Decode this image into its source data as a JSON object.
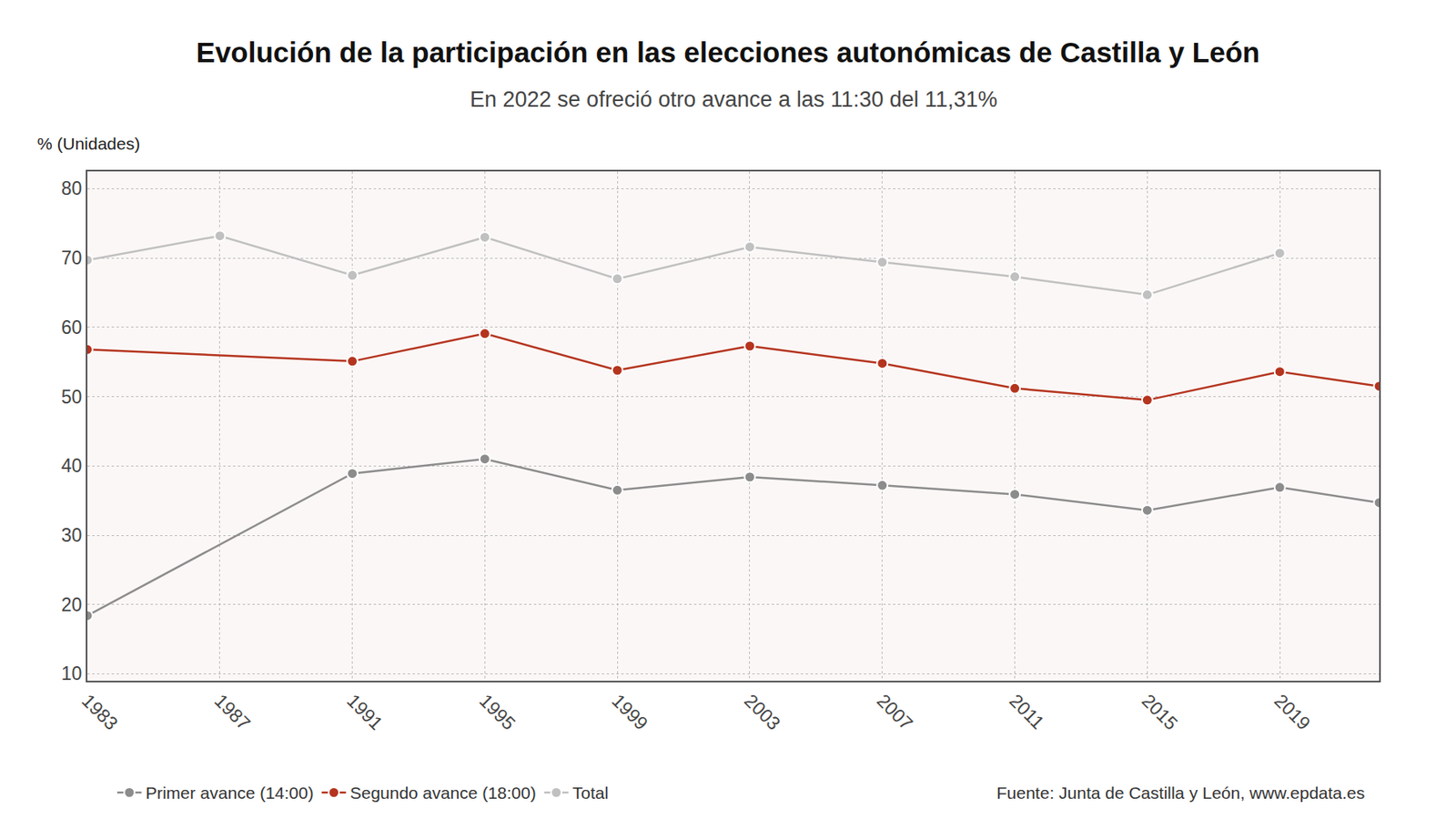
{
  "chart_data": {
    "type": "line",
    "title": "Evolución de la participación en las elecciones autonómicas de Castilla y León",
    "subtitle": "En 2022 se ofreció otro avance a las 11:30 del 11,31%",
    "ylabel": "% (Unidades)",
    "annotations": [
      "Fuente: Junta de Castilla y León, www.epdata.es"
    ],
    "xlim": [
      1983,
      2022
    ],
    "xticks": [
      1983,
      1987,
      1991,
      1995,
      1999,
      2003,
      2007,
      2011,
      2015,
      2019
    ],
    "ylim": [
      9,
      82.5
    ],
    "yticks": [
      10,
      20,
      30,
      40,
      50,
      60,
      70,
      80
    ],
    "grid": true,
    "legend": "bottom",
    "marker": "circle",
    "series": [
      {
        "name": "Primer avance (14:00)",
        "color": "#8c8c8c",
        "x": [
          1983,
          1991,
          1995,
          1999,
          2003,
          2007,
          2011,
          2015,
          2019,
          2022
        ],
        "values": [
          18.4,
          38.9,
          41.0,
          36.5,
          38.4,
          37.2,
          35.9,
          33.6,
          36.9,
          34.7
        ]
      },
      {
        "name": "Segundo avance (18:00)",
        "color": "#b5341e",
        "x": [
          1983,
          1991,
          1995,
          1999,
          2003,
          2007,
          2011,
          2015,
          2019,
          2022
        ],
        "values": [
          56.8,
          55.1,
          59.1,
          53.8,
          57.3,
          54.8,
          51.2,
          49.5,
          53.6,
          51.5
        ]
      },
      {
        "name": "Total",
        "color": "#c0c0c0",
        "x": [
          1983,
          1987,
          1991,
          1995,
          1999,
          2003,
          2007,
          2011,
          2015,
          2019
        ],
        "values": [
          69.7,
          73.2,
          67.5,
          73.0,
          67.0,
          71.6,
          69.4,
          67.3,
          64.7,
          70.7
        ]
      }
    ]
  }
}
